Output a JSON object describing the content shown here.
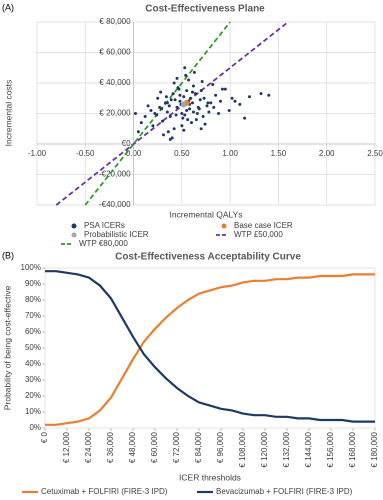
{
  "chart_data": [
    {
      "type": "scatter",
      "panel": "(A)",
      "title": "Cost-Effectiveness Plane",
      "x_label": "Incremental QALYs",
      "y_label": "Incremental costs",
      "xlim": [
        -1,
        2.5
      ],
      "ylim": [
        -40000,
        80000
      ],
      "grid": true,
      "xticks": [
        {
          "value": -1,
          "label": "-1.00"
        },
        {
          "value": -0.5,
          "label": "-0.50"
        },
        {
          "value": 0,
          "label": "0.00"
        },
        {
          "value": 0.5,
          "label": "0.50"
        },
        {
          "value": 1,
          "label": "1.00"
        },
        {
          "value": 1.5,
          "label": "1.50"
        },
        {
          "value": 2,
          "label": "2.00"
        },
        {
          "value": 2.5,
          "label": "2.50"
        }
      ],
      "yticks": [
        {
          "value": -40000,
          "label": "-€40,000"
        },
        {
          "value": -20000,
          "label": "-€20,000"
        },
        {
          "value": 0,
          "label": "€0"
        },
        {
          "value": 20000,
          "label": "€ 20,000"
        },
        {
          "value": 40000,
          "label": "€ 40,000"
        },
        {
          "value": 60000,
          "label": "€ 60,000"
        },
        {
          "value": 80000,
          "label": "€ 80,000"
        }
      ],
      "series": [
        {
          "name": "PSA ICERs",
          "color": "#1f3864",
          "marker": "dot",
          "x": [
            0.45,
            0.52,
            0.38,
            0.61,
            0.55,
            0.7,
            0.3,
            0.48,
            0.66,
            0.41,
            0.58,
            0.35,
            0.5,
            0.73,
            0.27,
            0.62,
            0.44,
            0.8,
            0.57,
            0.39,
            0.68,
            0.51,
            0.22,
            0.47,
            0.85,
            0.6,
            0.33,
            0.54,
            0.42,
            0.76,
            0.18,
            0.64,
            0.49,
            0.9,
            0.36,
            0.59,
            0.71,
            0.25,
            0.53,
            0.95,
            0.43,
            0.67,
            0.31,
            0.56,
            0.78,
            0.12,
            0.46,
            1.02,
            0.63,
            0.37,
            0.82,
            0.5,
            0.28,
            0.74,
            0.4,
            1.1,
            0.58,
            0.2,
            0.69,
            0.34,
            0.88,
            0.52,
            0.08,
            0.61,
            1.2,
            0.45,
            0.77,
            0.29,
            0.55,
            0.99,
            0.15,
            0.65,
            1.32,
            0.42,
            0.72,
            0.05,
            0.57,
            0.92,
            0.38,
            1.05,
            0.48,
            0.83,
            0.24,
            0.62,
            1.4,
            0.35,
            0.7,
            0.02,
            0.53,
            1.15
          ],
          "values": [
            24000,
            31000,
            18000,
            27000,
            22000,
            35000,
            15000,
            28000,
            20000,
            33000,
            26000,
            21000,
            12000,
            30000,
            24000,
            38000,
            19000,
            27000,
            42000,
            29000,
            23000,
            17000,
            20000,
            36000,
            32000,
            14000,
            27000,
            45000,
            10000,
            25000,
            22000,
            33000,
            26000,
            28000,
            8000,
            30000,
            41000,
            30000,
            19000,
            36000,
            29000,
            24000,
            6000,
            16000,
            21000,
            18000,
            37000,
            30000,
            47000,
            25000,
            39000,
            20000,
            34000,
            13000,
            4000,
            26000,
            23000,
            12000,
            29000,
            31000,
            20000,
            9000,
            14000,
            34000,
            31000,
            43000,
            27000,
            23000,
            35000,
            22000,
            25000,
            16000,
            33000,
            40000,
            18000,
            8000,
            28000,
            36000,
            3000,
            28000,
            32000,
            24000,
            19000,
            21000,
            32000,
            27000,
            10000,
            20000,
            50000,
            17000
          ]
        },
        {
          "name": "Base case ICER",
          "color": "#ed7d31",
          "marker": "big-dot",
          "x": [
            0.55
          ],
          "values": [
            27000
          ]
        },
        {
          "name": "Probabilistic ICER",
          "color": "#a5a5a5",
          "marker": "big-dot",
          "x": [
            0.52
          ],
          "values": [
            26000
          ]
        },
        {
          "name": "WTP £50,000",
          "color": "#7030a0",
          "line_style": "dashed",
          "x": [
            -0.8,
            1.6
          ],
          "values": [
            -40000,
            80000
          ]
        },
        {
          "name": "WTP €80,000",
          "color": "#2e9b2e",
          "line_style": "dashed",
          "x": [
            -0.5,
            1.0
          ],
          "values": [
            -40000,
            80000
          ]
        }
      ]
    },
    {
      "type": "line",
      "panel": "(B)",
      "title": "Cost-Effectiveness Acceptability Curve",
      "x_label": "ICER thresholds",
      "y_label": "Probability of being cost-effective",
      "xlim": [
        0,
        180000
      ],
      "ylim": [
        0,
        100
      ],
      "grid": false,
      "xticks": [
        {
          "value": 0,
          "label": "€ 0"
        },
        {
          "value": 12000,
          "label": "€ 12,000"
        },
        {
          "value": 24000,
          "label": "€ 24,000"
        },
        {
          "value": 36000,
          "label": "€ 36,000"
        },
        {
          "value": 48000,
          "label": "€ 48,000"
        },
        {
          "value": 60000,
          "label": "€ 60,000"
        },
        {
          "value": 72000,
          "label": "€ 72,000"
        },
        {
          "value": 84000,
          "label": "€ 84,000"
        },
        {
          "value": 96000,
          "label": "€ 96,000"
        },
        {
          "value": 108000,
          "label": "€ 108,000"
        },
        {
          "value": 120000,
          "label": "€ 120,000"
        },
        {
          "value": 132000,
          "label": "€ 132,000"
        },
        {
          "value": 144000,
          "label": "€ 144,000"
        },
        {
          "value": 156000,
          "label": "€ 156,000"
        },
        {
          "value": 168000,
          "label": "€ 168,000"
        },
        {
          "value": 180000,
          "label": "€ 180,000"
        }
      ],
      "yticks": [
        {
          "value": 0,
          "label": "0%"
        },
        {
          "value": 10,
          "label": "10%"
        },
        {
          "value": 20,
          "label": "20%"
        },
        {
          "value": 30,
          "label": "30%"
        },
        {
          "value": 40,
          "label": "40%"
        },
        {
          "value": 50,
          "label": "50%"
        },
        {
          "value": 60,
          "label": "60%"
        },
        {
          "value": 70,
          "label": "70%"
        },
        {
          "value": 80,
          "label": "80%"
        },
        {
          "value": 90,
          "label": "90%"
        },
        {
          "value": 100,
          "label": "100%"
        }
      ],
      "x": [
        0,
        6000,
        12000,
        18000,
        24000,
        30000,
        36000,
        42000,
        48000,
        54000,
        60000,
        66000,
        72000,
        78000,
        84000,
        90000,
        96000,
        102000,
        108000,
        114000,
        120000,
        126000,
        132000,
        138000,
        144000,
        150000,
        156000,
        162000,
        168000,
        174000,
        180000
      ],
      "series": [
        {
          "name": "Cetuximab + FOLFIRI (FIRE-3 IPD)",
          "color": "#ed7d31",
          "values": [
            2,
            2,
            3,
            4,
            6,
            11,
            19,
            31,
            43,
            54,
            62,
            69,
            75,
            80,
            84,
            86,
            88,
            89,
            91,
            92,
            92,
            93,
            93,
            94,
            94,
            95,
            95,
            95,
            96,
            96,
            96
          ]
        },
        {
          "name": "Bevacizumab + FOLFIRI (FIRE-3 IPD)",
          "color": "#1f3864",
          "values": [
            98,
            98,
            97,
            96,
            94,
            89,
            81,
            69,
            57,
            46,
            38,
            31,
            25,
            20,
            16,
            14,
            12,
            11,
            9,
            8,
            8,
            7,
            7,
            6,
            6,
            5,
            5,
            5,
            4,
            4,
            4
          ]
        }
      ]
    }
  ]
}
